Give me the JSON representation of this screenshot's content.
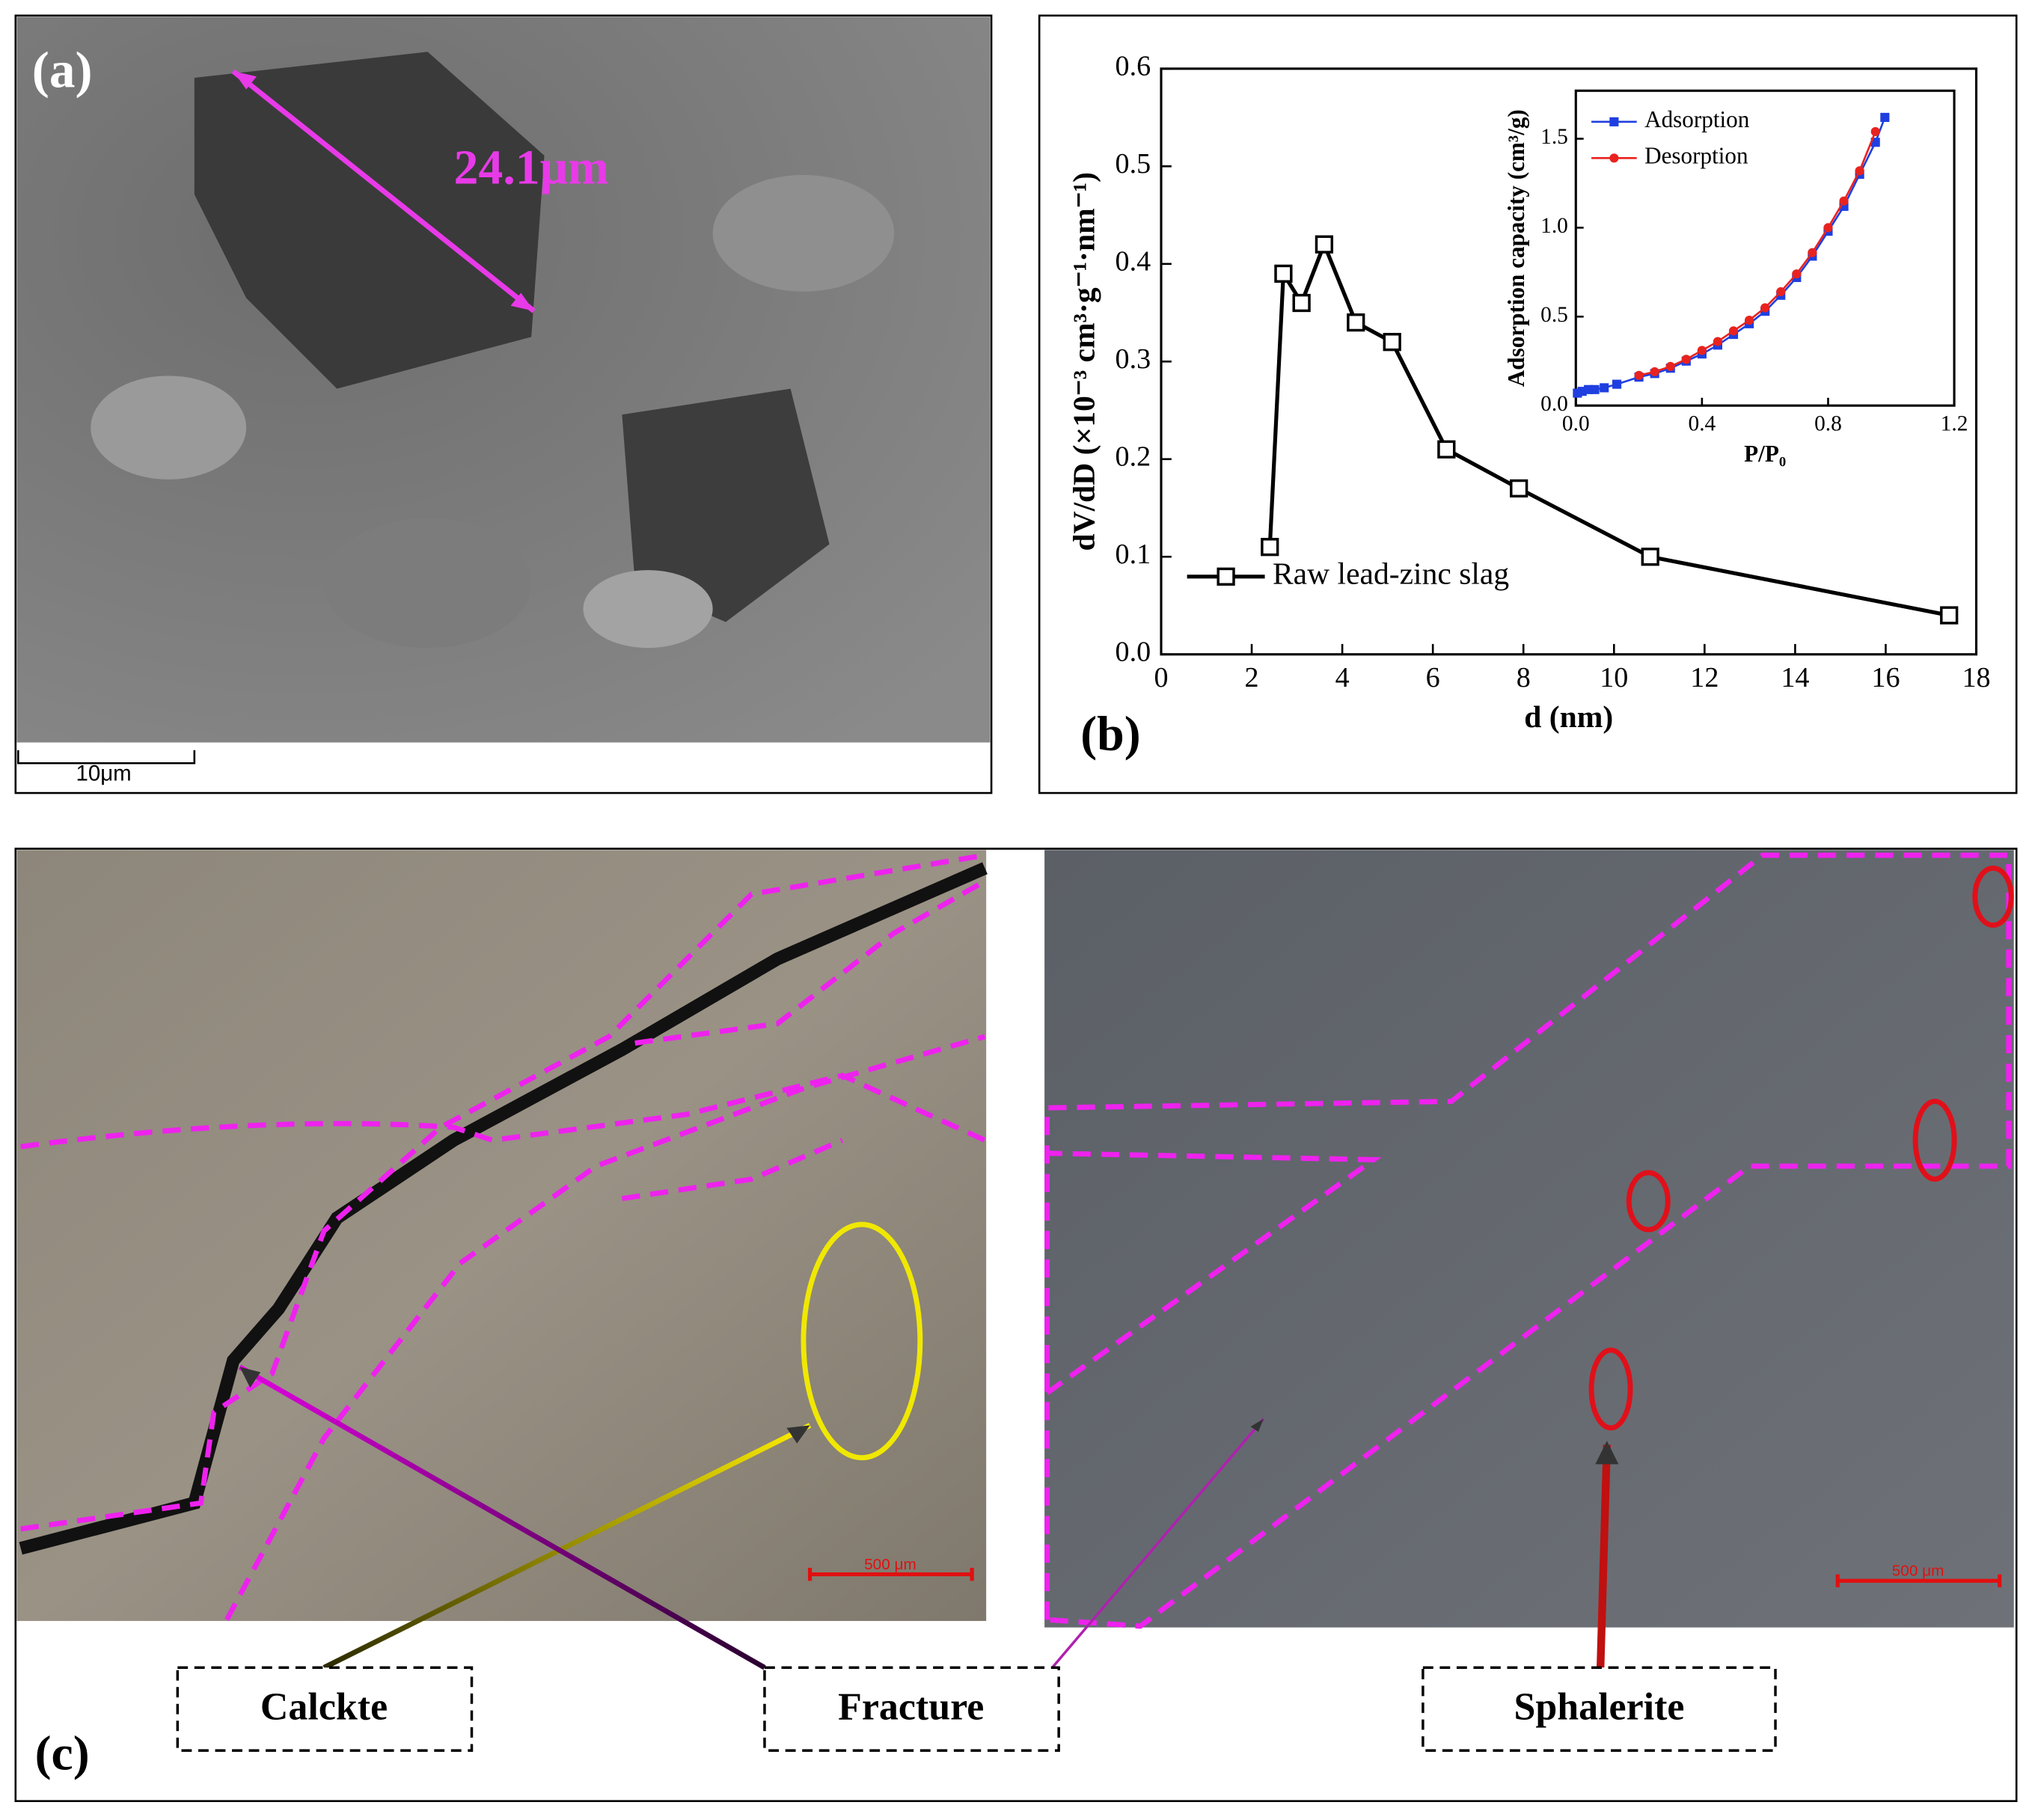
{
  "figure": {
    "panel_labels": [
      "(a)",
      "(b)",
      "(c)"
    ],
    "annotation": "24.1μm",
    "scale_bars": [
      "10μm",
      "500 μm",
      "500 μm"
    ],
    "callouts": [
      "Calckte",
      "Fracture",
      "Sphalerite"
    ]
  },
  "chart_data": [
    {
      "type": "line",
      "x_label": "d (nm)",
      "y_label": "dV/dD (×10⁻³ cm³·g⁻¹·nm⁻¹)",
      "xlim": [
        0,
        18
      ],
      "ylim": [
        0,
        0.6
      ],
      "xticks": [
        0,
        2,
        4,
        6,
        8,
        10,
        12,
        14,
        16,
        18
      ],
      "yticks": [
        {
          "value": 0,
          "label": "0.0"
        },
        {
          "value": 0.1,
          "label": "0.1"
        },
        {
          "value": 0.2,
          "label": "0.2"
        },
        {
          "value": 0.3,
          "label": "0.3"
        },
        {
          "value": 0.4,
          "label": "0.4"
        },
        {
          "value": 0.5,
          "label": "0.5"
        },
        {
          "value": 0.6,
          "label": "0.6"
        }
      ],
      "legend": "lower left",
      "series": [
        {
          "name": "Raw lead-zinc slag",
          "color": "#000000",
          "marker": "open-square",
          "x": [
            2.4,
            2.7,
            3.1,
            3.6,
            4.3,
            5.1,
            6.3,
            7.9,
            10.8,
            17.4
          ],
          "values": [
            0.11,
            0.39,
            0.36,
            0.42,
            0.34,
            0.32,
            0.21,
            0.17,
            0.1,
            0.04
          ]
        }
      ]
    },
    {
      "type": "line",
      "x_label": "P/P₀",
      "y_label": "Adsorption capacity (cm³/g)",
      "xlim": [
        0,
        1.2
      ],
      "ylim": [
        0,
        1.77
      ],
      "xticks": [
        {
          "value": 0,
          "label": "0.0"
        },
        {
          "value": 0.4,
          "label": "0.4"
        },
        {
          "value": 0.8,
          "label": "0.8"
        },
        {
          "value": 1.2,
          "label": "1.2"
        }
      ],
      "yticks": [
        {
          "value": 0,
          "label": "0.0"
        },
        {
          "value": 0.5,
          "label": "0.5"
        },
        {
          "value": 1.0,
          "label": "1.0"
        },
        {
          "value": 1.5,
          "label": "1.5"
        }
      ],
      "legend": "upper left",
      "series": [
        {
          "name": "Adsorption",
          "color": "#1f3fe0",
          "marker": "square",
          "x": [
            0.005,
            0.02,
            0.04,
            0.06,
            0.09,
            0.13,
            0.2,
            0.25,
            0.3,
            0.35,
            0.4,
            0.45,
            0.5,
            0.55,
            0.6,
            0.65,
            0.7,
            0.75,
            0.8,
            0.85,
            0.9,
            0.95,
            0.98
          ],
          "values": [
            0.07,
            0.08,
            0.09,
            0.09,
            0.1,
            0.12,
            0.16,
            0.18,
            0.21,
            0.25,
            0.29,
            0.34,
            0.4,
            0.46,
            0.53,
            0.62,
            0.72,
            0.84,
            0.98,
            1.12,
            1.3,
            1.48,
            1.62
          ]
        },
        {
          "name": "Desorption",
          "color": "#e8231f",
          "marker": "circle",
          "x": [
            0.2,
            0.25,
            0.3,
            0.35,
            0.4,
            0.45,
            0.5,
            0.55,
            0.6,
            0.65,
            0.7,
            0.75,
            0.8,
            0.85,
            0.9,
            0.95
          ],
          "values": [
            0.17,
            0.19,
            0.22,
            0.26,
            0.31,
            0.36,
            0.42,
            0.48,
            0.55,
            0.64,
            0.74,
            0.86,
            1.0,
            1.15,
            1.32,
            1.54
          ]
        }
      ]
    }
  ]
}
